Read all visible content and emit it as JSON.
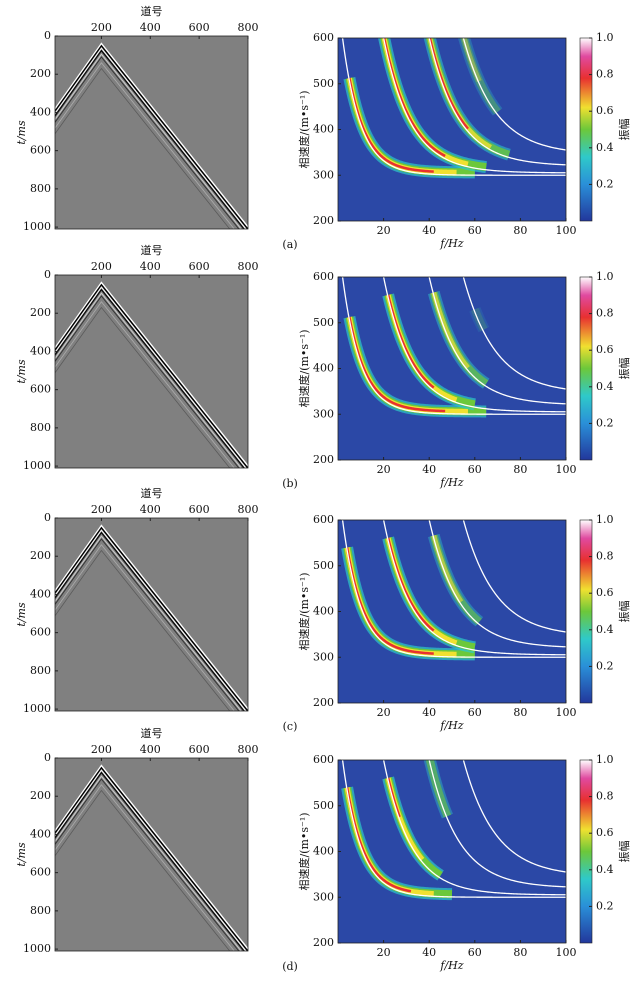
{
  "chart_data": [
    {
      "type": "seismic",
      "x_label": "道号",
      "y_label": "t/ms",
      "xlim": [
        10,
        800
      ],
      "ylim": [
        0,
        1010
      ],
      "xticks": [
        200,
        400,
        600,
        800
      ],
      "yticks": [
        0,
        200,
        400,
        600,
        800,
        1000
      ]
    },
    {
      "type": "dispersion",
      "x_label": "f/Hz",
      "y_label": "相速度/(m•s⁻¹)",
      "xlim": [
        0,
        100
      ],
      "ylim": [
        200,
        600
      ],
      "xticks": [
        20,
        40,
        60,
        80,
        100
      ],
      "yticks": [
        200,
        300,
        400,
        500,
        600
      ],
      "colorbar": {
        "label": "振幅",
        "lim": [
          0,
          1
        ],
        "ticks": [
          0.2,
          0.4,
          0.6,
          0.8,
          {
            "value": 1,
            "label": "1.0"
          }
        ]
      },
      "caption": "(a)"
    },
    {
      "type": "seismic",
      "x_label": "道号",
      "y_label": "t/ms",
      "xlim": [
        10,
        800
      ],
      "ylim": [
        0,
        1010
      ],
      "xticks": [
        200,
        400,
        600,
        800
      ],
      "yticks": [
        0,
        200,
        400,
        600,
        800,
        1000
      ]
    },
    {
      "type": "dispersion",
      "x_label": "f/Hz",
      "y_label": "相速度/(m•s⁻¹)",
      "xlim": [
        0,
        100
      ],
      "ylim": [
        200,
        600
      ],
      "xticks": [
        20,
        40,
        60,
        80,
        100
      ],
      "yticks": [
        200,
        300,
        400,
        500,
        600
      ],
      "colorbar": {
        "label": "振幅",
        "lim": [
          0,
          1
        ],
        "ticks": [
          0.2,
          0.4,
          0.6,
          0.8,
          {
            "value": 1,
            "label": "1.0"
          }
        ]
      },
      "caption": "(b)"
    },
    {
      "type": "seismic",
      "x_label": "道号",
      "y_label": "t/ms",
      "xlim": [
        10,
        800
      ],
      "ylim": [
        0,
        1010
      ],
      "xticks": [
        200,
        400,
        600,
        800
      ],
      "yticks": [
        0,
        200,
        400,
        600,
        800,
        1000
      ]
    },
    {
      "type": "dispersion",
      "x_label": "f/Hz",
      "y_label": "相速度/(m•s⁻¹)",
      "xlim": [
        0,
        100
      ],
      "ylim": [
        200,
        600
      ],
      "xticks": [
        20,
        40,
        60,
        80,
        100
      ],
      "yticks": [
        200,
        300,
        400,
        500,
        600
      ],
      "colorbar": {
        "label": "振幅",
        "lim": [
          0,
          1
        ],
        "ticks": [
          0.2,
          0.4,
          0.6,
          0.8,
          {
            "value": 1,
            "label": "1.0"
          }
        ]
      },
      "caption": "(c)"
    },
    {
      "type": "seismic",
      "x_label": "道号",
      "y_label": "t/ms",
      "xlim": [
        10,
        800
      ],
      "ylim": [
        0,
        1010
      ],
      "xticks": [
        200,
        400,
        600,
        800
      ],
      "yticks": [
        0,
        200,
        400,
        600,
        800,
        1000
      ]
    },
    {
      "type": "dispersion",
      "x_label": "f/Hz",
      "y_label": "相速度/(m•s⁻¹)",
      "xlim": [
        0,
        100
      ],
      "ylim": [
        200,
        600
      ],
      "xticks": [
        20,
        40,
        60,
        80,
        100
      ],
      "yticks": [
        200,
        300,
        400,
        500,
        600
      ],
      "colorbar": {
        "label": "振幅",
        "lim": [
          0,
          1
        ],
        "ticks": [
          0.2,
          0.4,
          0.6,
          0.8,
          {
            "value": 1,
            "label": "1.0"
          }
        ]
      },
      "caption": "(d)"
    }
  ]
}
